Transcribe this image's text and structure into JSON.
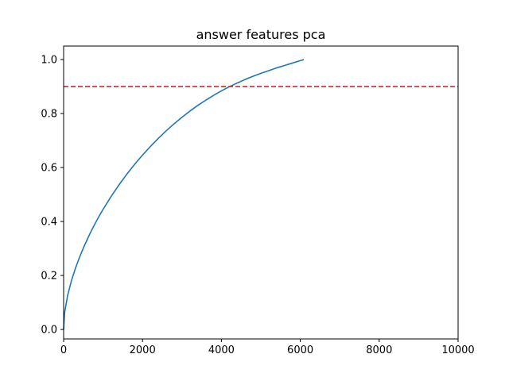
{
  "chart_data": {
    "type": "line",
    "title": "answer features pca",
    "xlabel": "",
    "ylabel": "",
    "xlim": [
      0,
      10000
    ],
    "ylim": [
      -0.035,
      1.05
    ],
    "x_ticks": [
      0,
      2000,
      4000,
      6000,
      8000,
      10000
    ],
    "x_tick_labels": [
      "0",
      "2000",
      "4000",
      "6000",
      "8000",
      "10000"
    ],
    "y_ticks": [
      0.0,
      0.2,
      0.4,
      0.6,
      0.8,
      1.0
    ],
    "y_tick_labels": [
      "0.0",
      "0.2",
      "0.4",
      "0.6",
      "0.8",
      "1.0"
    ],
    "grid": false,
    "legend": "none",
    "series": [
      {
        "color": "#1f77b4",
        "style": "solid",
        "x": [
          0,
          25,
          100,
          200,
          300,
          400,
          500,
          600,
          700,
          800,
          900,
          1000,
          1200,
          1400,
          1600,
          1800,
          2000,
          2200,
          2400,
          2600,
          2800,
          3000,
          3200,
          3400,
          3600,
          3800,
          4000,
          4200,
          4400,
          4600,
          4800,
          5000,
          5200,
          5400,
          5600,
          5800,
          6000,
          6090
        ],
        "y": [
          0.0,
          0.062,
          0.125,
          0.182,
          0.227,
          0.266,
          0.302,
          0.334,
          0.365,
          0.393,
          0.42,
          0.445,
          0.492,
          0.535,
          0.575,
          0.612,
          0.646,
          0.678,
          0.708,
          0.736,
          0.762,
          0.786,
          0.809,
          0.83,
          0.849,
          0.867,
          0.884,
          0.899,
          0.913,
          0.926,
          0.938,
          0.949,
          0.959,
          0.969,
          0.978,
          0.987,
          0.996,
          1.0
        ]
      }
    ],
    "reference_lines": [
      {
        "orientation": "horizontal",
        "y": 0.9,
        "color": "#d62728",
        "style": "dashed"
      }
    ]
  }
}
